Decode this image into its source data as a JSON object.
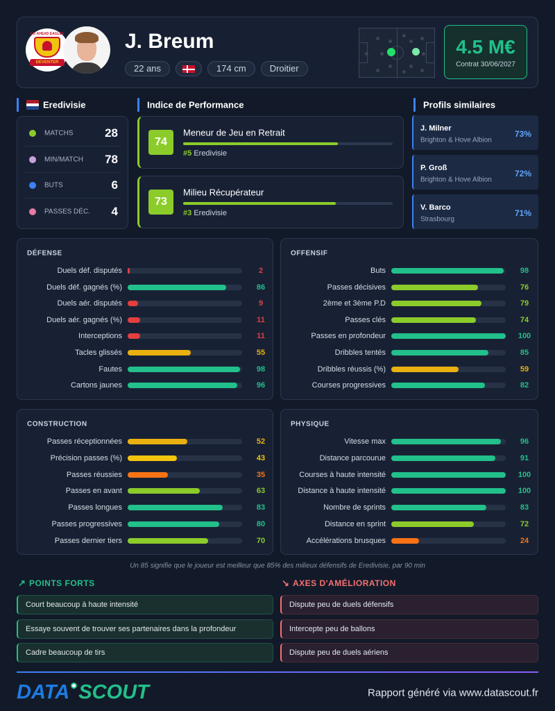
{
  "header": {
    "name": "J. Breum",
    "badge": {
      "top": "GO AHEAD EAGLES",
      "bottom": "DEVENTER"
    },
    "tags": [
      "22 ans",
      "174 cm",
      "Droitier"
    ],
    "market_value": "4.5 M€",
    "contract": "Contrat 30/06/2027"
  },
  "league": {
    "name": "Eredivisie",
    "stats": [
      {
        "label": "MATCHS",
        "value": 28
      },
      {
        "label": "MIN/MATCH",
        "value": 78
      },
      {
        "label": "BUTS",
        "value": 6
      },
      {
        "label": "PASSES DÉC.",
        "value": 4
      }
    ]
  },
  "performance": {
    "title": "Indice de Performance",
    "xlim": [
      0,
      100
    ],
    "color": "#8ccc2a",
    "items": [
      {
        "score": 74,
        "role": "Meneur de Jeu en Retrait",
        "rank": "#5",
        "league": "Eredivisie"
      },
      {
        "score": 73,
        "role": "Milieu Récupérateur",
        "rank": "#3",
        "league": "Eredivisie"
      }
    ]
  },
  "similar": {
    "title": "Profils similaires",
    "items": [
      {
        "name": "J. Milner",
        "club": "Brighton & Hove Albion",
        "similarity": "73%"
      },
      {
        "name": "P. Groß",
        "club": "Brighton & Hove Albion",
        "similarity": "72%"
      },
      {
        "name": "V. Barco",
        "club": "Strasbourg",
        "similarity": "71%"
      }
    ]
  },
  "sections": [
    {
      "title": "DÉFENSE",
      "xlim": [
        0,
        100
      ],
      "stats": [
        {
          "label": "Duels déf. disputés",
          "value": 2,
          "color": "#e53e3e"
        },
        {
          "label": "Duels déf. gagnés (%)",
          "value": 86,
          "color": "#22c08a"
        },
        {
          "label": "Duels aér. disputés",
          "value": 9,
          "color": "#e53e3e"
        },
        {
          "label": "Duels aér. gagnés (%)",
          "value": 11,
          "color": "#e53e3e"
        },
        {
          "label": "Interceptions",
          "value": 11,
          "color": "#e53e3e"
        },
        {
          "label": "Tacles glissés",
          "value": 55,
          "color": "#e9b10f"
        },
        {
          "label": "Fautes",
          "value": 98,
          "color": "#22c08a"
        },
        {
          "label": "Cartons jaunes",
          "value": 96,
          "color": "#22c08a"
        }
      ]
    },
    {
      "title": "OFFENSIF",
      "xlim": [
        0,
        100
      ],
      "stats": [
        {
          "label": "Buts",
          "value": 98,
          "color": "#22c08a"
        },
        {
          "label": "Passes décisives",
          "value": 76,
          "color": "#8ccc2a"
        },
        {
          "label": "2ème et 3ème P.D",
          "value": 79,
          "color": "#8ccc2a"
        },
        {
          "label": "Passes clés",
          "value": 74,
          "color": "#8ccc2a"
        },
        {
          "label": "Passes en profondeur",
          "value": 100,
          "color": "#22c08a"
        },
        {
          "label": "Dribbles tentés",
          "value": 85,
          "color": "#22c08a"
        },
        {
          "label": "Dribbles réussis (%)",
          "value": 59,
          "color": "#e9b10f"
        },
        {
          "label": "Courses progressives",
          "value": 82,
          "color": "#22c08a"
        }
      ]
    },
    {
      "title": "CONSTRUCTION",
      "xlim": [
        0,
        100
      ],
      "stats": [
        {
          "label": "Passes réceptionnées",
          "value": 52,
          "color": "#e9b10f"
        },
        {
          "label": "Précision passes (%)",
          "value": 43,
          "color": "#f2c40f"
        },
        {
          "label": "Passes réussies",
          "value": 35,
          "color": "#f97316"
        },
        {
          "label": "Passes en avant",
          "value": 63,
          "color": "#8ccc2a"
        },
        {
          "label": "Passes longues",
          "value": 83,
          "color": "#22c08a"
        },
        {
          "label": "Passes progressives",
          "value": 80,
          "color": "#22c08a"
        },
        {
          "label": "Passes dernier tiers",
          "value": 70,
          "color": "#8ccc2a"
        }
      ]
    },
    {
      "title": "PHYSIQUE",
      "xlim": [
        0,
        100
      ],
      "stats": [
        {
          "label": "Vitesse max",
          "value": 96,
          "color": "#22c08a"
        },
        {
          "label": "Distance parcourue",
          "value": 91,
          "color": "#22c08a"
        },
        {
          "label": "Courses à haute intensité",
          "value": 100,
          "color": "#22c08a"
        },
        {
          "label": "Distance à haute intensité",
          "value": 100,
          "color": "#22c08a"
        },
        {
          "label": "Nombre de sprints",
          "value": 83,
          "color": "#22c08a"
        },
        {
          "label": "Distance en sprint",
          "value": 72,
          "color": "#8ccc2a"
        },
        {
          "label": "Accélérations brusques",
          "value": 24,
          "color": "#f97316"
        }
      ]
    }
  ],
  "note": "Un 85 signifie que le joueur est meilleur que 85% des milieux défensifs de Eredivisie, par 90 min",
  "strengths": {
    "title": "POINTS FORTS",
    "items": [
      "Court beaucoup à haute intensité",
      "Essaye souvent de trouver ses partenaires dans la profondeur",
      "Cadre beaucoup de tirs"
    ]
  },
  "improvements": {
    "title": "AXES D'AMÉLIORATION",
    "items": [
      "Dispute peu de duels défensifs",
      "Intercepte peu de ballons",
      "Dispute peu de duels aériens"
    ]
  },
  "footer": {
    "logo": [
      "DATA",
      "SCOUT"
    ],
    "text": "Rapport généré via www.datascout.fr"
  }
}
